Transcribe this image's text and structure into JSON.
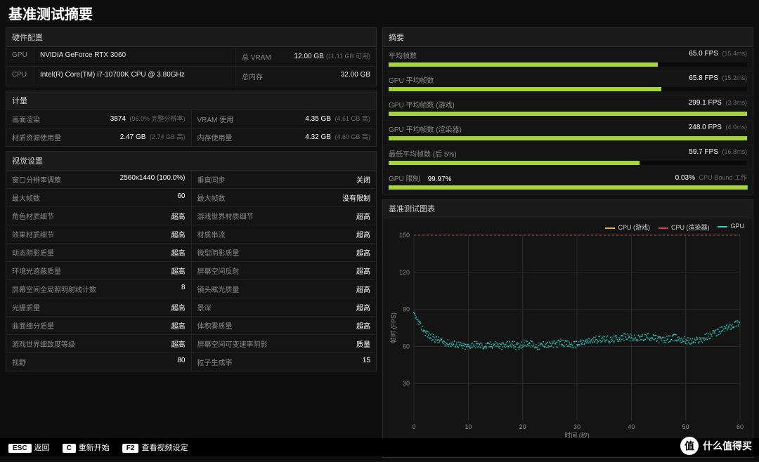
{
  "title": "基准测试摘要",
  "hardware": {
    "header": "硬件配置",
    "gpu_label": "GPU",
    "gpu_value": "NVIDIA GeForce RTX 3060",
    "vram_label": "总 VRAM",
    "vram_value": "12.00 GB",
    "vram_sub": "(11.11 GB 可用)",
    "cpu_label": "CPU",
    "cpu_value": "Intel(R) Core(TM) i7-10700K CPU @ 3.80GHz",
    "mem_label": "总内存",
    "mem_value": "32.00 GB"
  },
  "metrics": {
    "header": "计量",
    "rows_left": [
      {
        "label": "画面渲染",
        "value": "3874",
        "sub": "(96.0% 完整分辨率)"
      },
      {
        "label": "材质资源使用量",
        "value": "2.47 GB",
        "sub": "(2.74 GB 高)"
      }
    ],
    "rows_right": [
      {
        "label": "VRAM 使用",
        "value": "4.35 GB",
        "sub": "(4.61 GB 高)"
      },
      {
        "label": "内存使用量",
        "value": "4.32 GB",
        "sub": "(4.60 GB 高)"
      }
    ]
  },
  "settings": {
    "header": "视觉设置",
    "left": [
      {
        "label": "窗口分辨率调整",
        "value": "2560x1440 (100.0%)"
      },
      {
        "label": "最大帧数",
        "value": "60"
      },
      {
        "label": "角色材质细节",
        "value": "超高"
      },
      {
        "label": "效果材质细节",
        "value": "超高"
      },
      {
        "label": "动态阴影质量",
        "value": "超高"
      },
      {
        "label": "环境光遮蔽质量",
        "value": "超高"
      },
      {
        "label": "屏幕空间全局照明射线计数",
        "value": "8"
      },
      {
        "label": "光栅质量",
        "value": "超高"
      },
      {
        "label": "曲面细分质量",
        "value": "超高"
      },
      {
        "label": "游戏世界细致度等级",
        "value": "超高"
      },
      {
        "label": "视野",
        "value": "80"
      }
    ],
    "right": [
      {
        "label": "垂直同步",
        "value": "关闭"
      },
      {
        "label": "最大帧数",
        "value": "没有限制"
      },
      {
        "label": "游戏世界材质细节",
        "value": "超高"
      },
      {
        "label": "材质串流",
        "value": "超高"
      },
      {
        "label": "微型阴影质量",
        "value": "超高"
      },
      {
        "label": "屏幕空间反射",
        "value": "超高"
      },
      {
        "label": "镜头眩光质量",
        "value": "超高"
      },
      {
        "label": "景深",
        "value": "超高"
      },
      {
        "label": "体积雾质量",
        "value": "超高"
      },
      {
        "label": "屏幕空间可变速率阴影",
        "value": "质量"
      },
      {
        "label": "粒子生成率",
        "value": "15"
      }
    ]
  },
  "summary": {
    "header": "摘要",
    "items": [
      {
        "label": "平均帧数",
        "fps": "65.0 FPS",
        "ms": "(15.4ms)",
        "pct": 75
      },
      {
        "label": "GPU 平均帧数",
        "fps": "65.8 FPS",
        "ms": "(15.2ms)",
        "pct": 76
      },
      {
        "label": "GPU 平均帧数 (游戏)",
        "fps": "299.1 FPS",
        "ms": "(3.3ms)",
        "pct": 100
      },
      {
        "label": "GPU 平均帧数 (渲染器)",
        "fps": "248.0 FPS",
        "ms": "(4.0ms)",
        "pct": 100
      },
      {
        "label": "最低平均帧数 (后 5%)",
        "fps": "59.7 FPS",
        "ms": "(16.8ms)",
        "pct": 70
      }
    ],
    "gpu_limit": {
      "label": "GPU 限制",
      "left_val": "99.97%",
      "right_val": "0.03%",
      "right_label": "CPU-Bound 工作",
      "pct": 99.97
    }
  },
  "chart": {
    "header": "基准测试图表",
    "legend": [
      {
        "label": "CPU (游戏)",
        "color": "#e3b341"
      },
      {
        "label": "CPU (渲染器)",
        "color": "#d64545"
      },
      {
        "label": "GPU",
        "color": "#2fcec6"
      }
    ],
    "ylabel": "帧时 (FPS)",
    "xlabel": "时间 (秒)",
    "ylim": [
      0,
      150
    ],
    "yticks": [
      30,
      60,
      90,
      120,
      150
    ],
    "xlim": [
      0,
      60
    ],
    "xticks": [
      0,
      10,
      20,
      30,
      40,
      50,
      60
    ],
    "grid_color": "#2a2a2a",
    "bg_color": "#141414",
    "axis_label_color": "#888",
    "axis_label_fontsize": 9,
    "dashed_line": {
      "y": 150,
      "color": "#d64545"
    },
    "gpu_series": {
      "color": "#2fcec6",
      "noise": 6,
      "base": [
        [
          0,
          85
        ],
        [
          1,
          78
        ],
        [
          2,
          72
        ],
        [
          3,
          68
        ],
        [
          4,
          66
        ],
        [
          5,
          64
        ],
        [
          6,
          63
        ],
        [
          7,
          62
        ],
        [
          8,
          62
        ],
        [
          9,
          60
        ],
        [
          10,
          60
        ],
        [
          11,
          62
        ],
        [
          12,
          61
        ],
        [
          13,
          60
        ],
        [
          14,
          61
        ],
        [
          15,
          62
        ],
        [
          16,
          60
        ],
        [
          17,
          61
        ],
        [
          18,
          62
        ],
        [
          19,
          60
        ],
        [
          20,
          62
        ],
        [
          21,
          63
        ],
        [
          22,
          61
        ],
        [
          23,
          60
        ],
        [
          24,
          62
        ],
        [
          25,
          61
        ],
        [
          26,
          62
        ],
        [
          27,
          63
        ],
        [
          28,
          62
        ],
        [
          29,
          61
        ],
        [
          30,
          62
        ],
        [
          31,
          63
        ],
        [
          32,
          64
        ],
        [
          33,
          65
        ],
        [
          34,
          66
        ],
        [
          35,
          67
        ],
        [
          36,
          65
        ],
        [
          37,
          66
        ],
        [
          38,
          67
        ],
        [
          39,
          68
        ],
        [
          40,
          67
        ],
        [
          41,
          66
        ],
        [
          42,
          67
        ],
        [
          43,
          68
        ],
        [
          44,
          67
        ],
        [
          45,
          66
        ],
        [
          46,
          65
        ],
        [
          47,
          66
        ],
        [
          48,
          67
        ],
        [
          49,
          66
        ],
        [
          50,
          65
        ],
        [
          51,
          64
        ],
        [
          52,
          65
        ],
        [
          53,
          66
        ],
        [
          54,
          68
        ],
        [
          55,
          70
        ],
        [
          56,
          72
        ],
        [
          57,
          74
        ],
        [
          58,
          76
        ],
        [
          59,
          78
        ],
        [
          60,
          80
        ]
      ]
    }
  },
  "colors": {
    "bar_fill": "#a5d536",
    "bar_rest": "#2fcec6"
  },
  "footer": {
    "items": [
      {
        "key": "ESC",
        "label": "返回"
      },
      {
        "key": "C",
        "label": "重新开始"
      },
      {
        "key": "F2",
        "label": "查看视频设定"
      }
    ]
  },
  "brand": {
    "icon": "值",
    "text": "什么值得买"
  }
}
